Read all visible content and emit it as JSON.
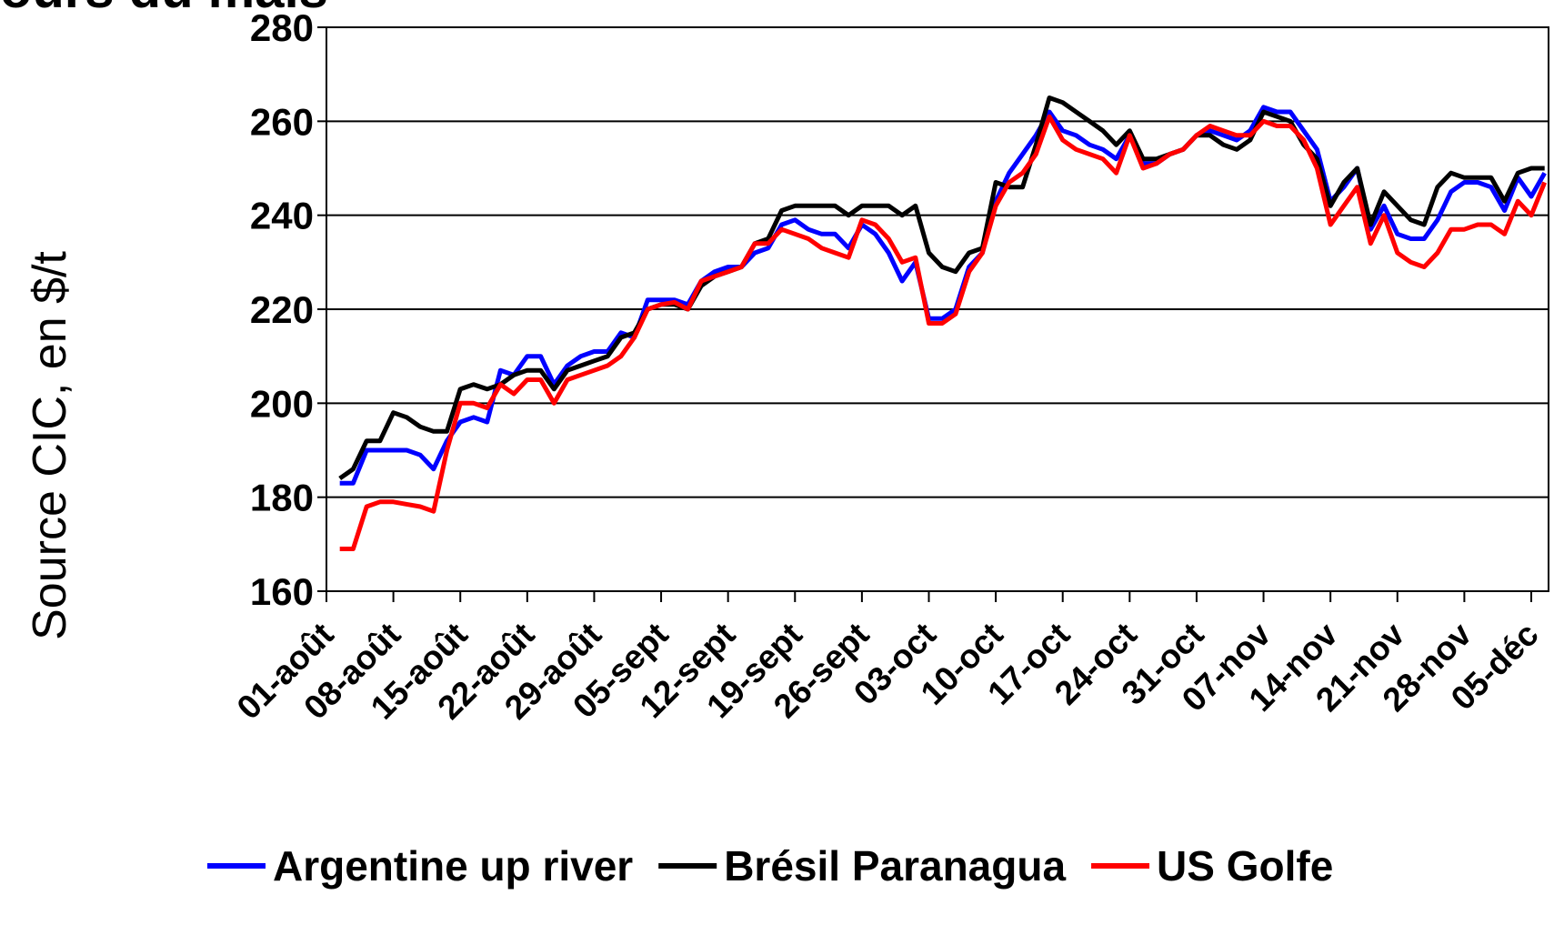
{
  "chart_data": {
    "type": "line",
    "title": "Cours du maïs",
    "y_label": "Source CIC, en $/t",
    "categories": [
      "01-août",
      null,
      null,
      null,
      null,
      "08-août",
      null,
      null,
      null,
      null,
      "15-août",
      null,
      null,
      null,
      null,
      "22-août",
      null,
      null,
      null,
      null,
      "29-août",
      null,
      null,
      null,
      null,
      "05-sept",
      null,
      null,
      null,
      null,
      "12-sept",
      null,
      null,
      null,
      null,
      "19-sept",
      null,
      null,
      null,
      null,
      "26-sept",
      null,
      null,
      null,
      null,
      "03-oct",
      null,
      null,
      null,
      null,
      "10-oct",
      null,
      null,
      null,
      null,
      "17-oct",
      null,
      null,
      null,
      null,
      "24-oct",
      null,
      null,
      null,
      null,
      "31-oct",
      null,
      null,
      null,
      null,
      "07-nov",
      null,
      null,
      null,
      null,
      "14-nov",
      null,
      null,
      null,
      null,
      "21-nov",
      null,
      null,
      null,
      null,
      "28-nov",
      null,
      null,
      null,
      null,
      "05-déc",
      null
    ],
    "series": [
      {
        "name": "Argentine up river",
        "color": "#0000ff",
        "values": [
          null,
          183,
          183,
          190,
          190,
          190,
          190,
          189,
          186,
          192,
          196,
          197,
          196,
          207,
          206,
          210,
          210,
          204,
          208,
          210,
          211,
          211,
          215,
          214,
          222,
          222,
          222,
          221,
          226,
          228,
          229,
          229,
          232,
          233,
          238,
          239,
          237,
          236,
          236,
          233,
          238,
          236,
          232,
          226,
          230,
          218,
          218,
          220,
          229,
          232,
          243,
          249,
          253,
          257,
          262,
          258,
          257,
          255,
          254,
          252,
          257,
          251,
          251,
          253,
          254,
          257,
          258,
          257,
          256,
          258,
          263,
          262,
          262,
          258,
          254,
          243,
          246,
          250,
          237,
          242,
          236,
          235,
          235,
          239,
          245,
          247,
          247,
          246,
          241,
          248,
          244,
          249
        ]
      },
      {
        "name": "Brésil Paranagua",
        "color": "#000000",
        "values": [
          null,
          184,
          186,
          192,
          192,
          198,
          197,
          195,
          194,
          194,
          203,
          204,
          203,
          204,
          206,
          207,
          207,
          203,
          207,
          208,
          209,
          210,
          214,
          215,
          220,
          221,
          221,
          220,
          225,
          227,
          228,
          229,
          234,
          235,
          241,
          242,
          242,
          242,
          242,
          240,
          242,
          242,
          242,
          240,
          242,
          232,
          229,
          228,
          232,
          233,
          247,
          246,
          246,
          255,
          265,
          264,
          262,
          260,
          258,
          255,
          258,
          252,
          252,
          253,
          254,
          257,
          257,
          255,
          254,
          256,
          262,
          261,
          260,
          255,
          252,
          242,
          247,
          250,
          238,
          245,
          242,
          239,
          238,
          246,
          249,
          248,
          248,
          248,
          243,
          249,
          250,
          250
        ]
      },
      {
        "name": "US Golfe",
        "color": "#ff0000",
        "values": [
          null,
          169,
          169,
          178,
          179,
          179,
          178.5,
          178,
          177,
          190,
          200,
          200,
          199,
          204,
          202,
          205,
          205,
          200,
          205,
          206,
          207,
          208,
          210,
          214,
          220,
          221,
          221.5,
          220,
          226,
          227,
          228,
          229,
          234,
          234,
          237,
          236,
          235,
          233,
          232,
          231,
          239,
          238,
          235,
          230,
          231,
          217,
          217,
          219,
          228,
          232,
          242,
          247,
          249,
          253,
          261,
          256,
          254,
          253,
          252,
          249,
          257,
          250,
          251,
          253,
          254,
          257,
          259,
          258,
          257,
          257,
          260,
          259,
          259,
          256,
          250,
          238,
          242,
          246,
          234,
          240,
          232,
          230,
          229,
          232,
          237,
          237,
          238,
          238,
          236,
          243,
          240,
          247
        ]
      }
    ],
    "ylim": [
      160,
      280
    ],
    "yticks": [
      160,
      180,
      200,
      220,
      240,
      260,
      280
    ],
    "grid": true,
    "legend": "bottom"
  }
}
